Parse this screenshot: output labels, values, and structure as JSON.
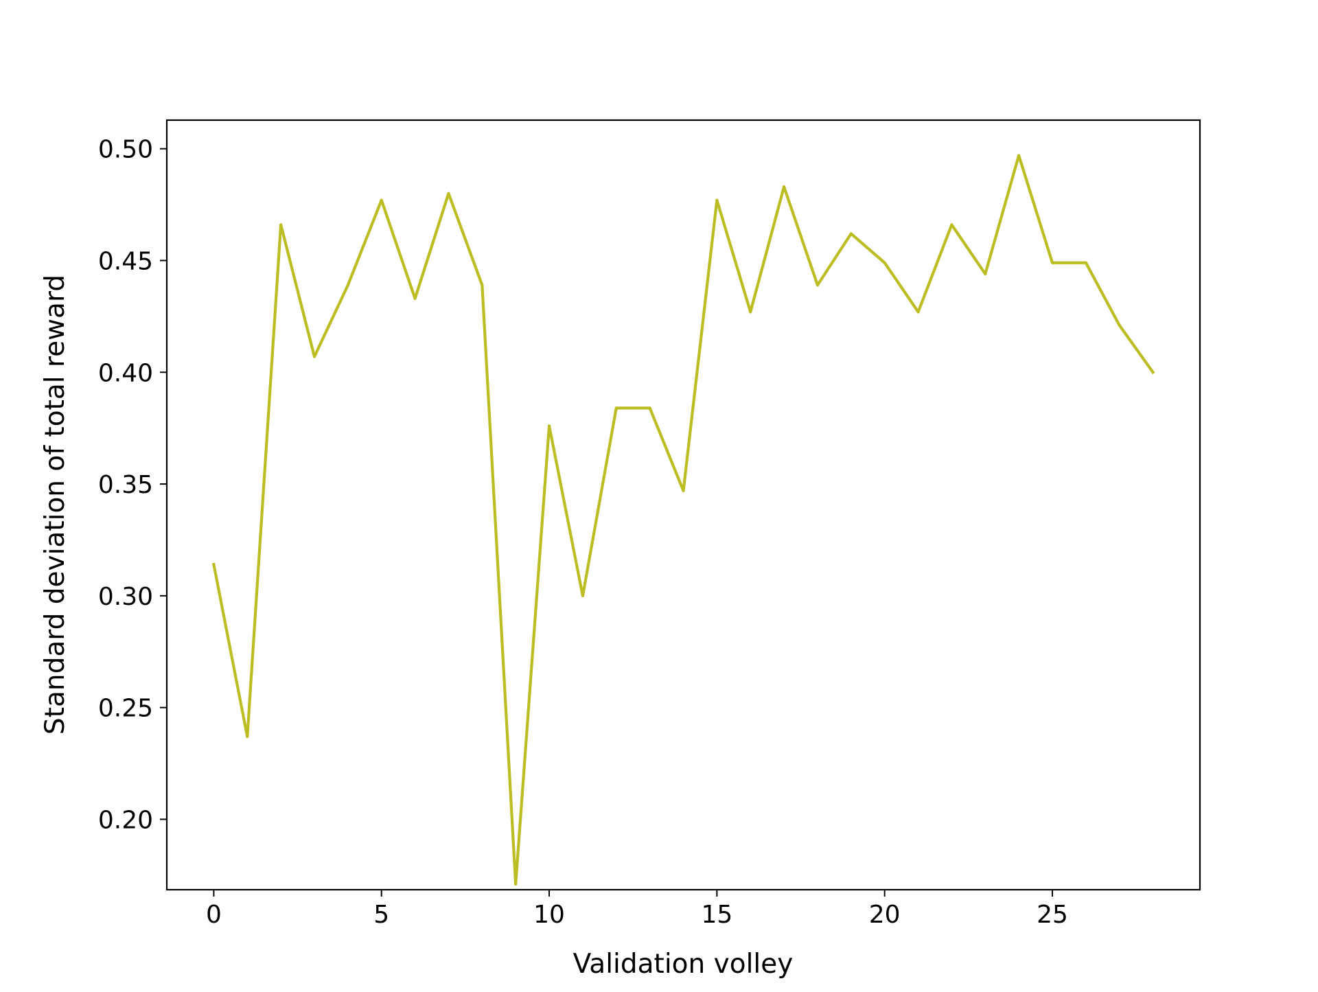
{
  "chart_data": {
    "type": "line",
    "title": "",
    "xlabel": "Validation volley",
    "ylabel": "Standard deviation of total reward",
    "xlim": [
      -1.4,
      29.4
    ],
    "ylim": [
      0.1685,
      0.5128
    ],
    "x_ticks": [
      0,
      5,
      10,
      15,
      20,
      25
    ],
    "x_tick_labels": [
      "0",
      "5",
      "10",
      "15",
      "20",
      "25"
    ],
    "y_ticks": [
      0.2,
      0.25,
      0.3,
      0.35,
      0.4,
      0.45,
      0.5
    ],
    "y_tick_labels": [
      "0.20",
      "0.25",
      "0.30",
      "0.35",
      "0.40",
      "0.45",
      "0.50"
    ],
    "grid": false,
    "legend": "none",
    "series": [
      {
        "color": "#bcbd22",
        "x": [
          0,
          1,
          2,
          3,
          4,
          5,
          6,
          7,
          8,
          9,
          10,
          11,
          12,
          13,
          14,
          15,
          16,
          17,
          18,
          19,
          20,
          21,
          22,
          23,
          24,
          25,
          26,
          27,
          28
        ],
        "y": [
          0.314,
          0.237,
          0.466,
          0.407,
          0.439,
          0.477,
          0.433,
          0.48,
          0.439,
          0.171,
          0.376,
          0.3,
          0.384,
          0.384,
          0.347,
          0.477,
          0.427,
          0.483,
          0.439,
          0.462,
          0.449,
          0.427,
          0.466,
          0.444,
          0.497,
          0.449,
          0.449,
          0.421,
          0.4
        ]
      }
    ]
  }
}
